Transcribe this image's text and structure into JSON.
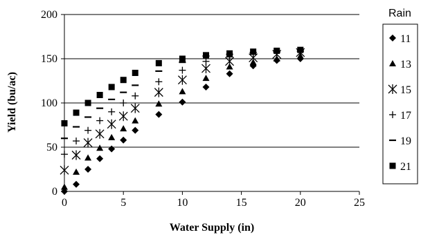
{
  "chart_data": {
    "type": "scatter",
    "title": "",
    "xlabel": "Water Supply (in)",
    "ylabel": "Yield (bu/ac)",
    "xlim": [
      0,
      25
    ],
    "ylim": [
      0,
      200
    ],
    "x_ticks": [
      0,
      5,
      10,
      15,
      20,
      25
    ],
    "y_ticks": [
      0,
      50,
      100,
      150,
      200
    ],
    "grid": "horizontal",
    "legend_title": "Rain",
    "legend_position": "right",
    "series": [
      {
        "name": "11",
        "marker": "diamond",
        "points": [
          [
            0,
            0
          ],
          [
            1,
            8
          ],
          [
            2,
            25
          ],
          [
            3,
            37
          ],
          [
            4,
            48
          ],
          [
            5,
            58
          ],
          [
            6,
            69
          ],
          [
            8,
            87
          ],
          [
            10,
            101
          ],
          [
            12,
            118
          ],
          [
            14,
            133
          ],
          [
            16,
            142
          ],
          [
            18,
            148
          ],
          [
            20,
            150
          ]
        ]
      },
      {
        "name": "13",
        "marker": "triangle",
        "points": [
          [
            0,
            5
          ],
          [
            1,
            22
          ],
          [
            2,
            38
          ],
          [
            3,
            49
          ],
          [
            4,
            61
          ],
          [
            5,
            71
          ],
          [
            6,
            80
          ],
          [
            8,
            99
          ],
          [
            10,
            113
          ],
          [
            12,
            128
          ],
          [
            14,
            141
          ],
          [
            16,
            146
          ],
          [
            18,
            150
          ],
          [
            20,
            153
          ]
        ]
      },
      {
        "name": "15",
        "marker": "asterisk",
        "points": [
          [
            0,
            24
          ],
          [
            1,
            41
          ],
          [
            2,
            55
          ],
          [
            3,
            65
          ],
          [
            4,
            76
          ],
          [
            5,
            85
          ],
          [
            6,
            94
          ],
          [
            8,
            112
          ],
          [
            10,
            126
          ],
          [
            12,
            139
          ],
          [
            14,
            147
          ],
          [
            16,
            151
          ],
          [
            18,
            155
          ],
          [
            20,
            157
          ]
        ]
      },
      {
        "name": "17",
        "marker": "plus",
        "points": [
          [
            0,
            42
          ],
          [
            1,
            57
          ],
          [
            2,
            69
          ],
          [
            3,
            80
          ],
          [
            4,
            90
          ],
          [
            5,
            100
          ],
          [
            6,
            108
          ],
          [
            8,
            124
          ],
          [
            10,
            137
          ],
          [
            12,
            147
          ],
          [
            14,
            152
          ],
          [
            16,
            155
          ],
          [
            18,
            157
          ],
          [
            20,
            158
          ]
        ]
      },
      {
        "name": "19",
        "marker": "dash",
        "points": [
          [
            0,
            60
          ],
          [
            1,
            73
          ],
          [
            2,
            84
          ],
          [
            3,
            94
          ],
          [
            4,
            104
          ],
          [
            5,
            112
          ],
          [
            6,
            120
          ],
          [
            8,
            136
          ],
          [
            10,
            146
          ],
          [
            12,
            153
          ],
          [
            14,
            155
          ],
          [
            16,
            157
          ],
          [
            18,
            158
          ],
          [
            20,
            159
          ]
        ]
      },
      {
        "name": "21",
        "marker": "square",
        "points": [
          [
            0,
            77
          ],
          [
            1,
            89
          ],
          [
            2,
            100
          ],
          [
            3,
            109
          ],
          [
            4,
            118
          ],
          [
            5,
            126
          ],
          [
            6,
            134
          ],
          [
            8,
            145
          ],
          [
            10,
            150
          ],
          [
            12,
            154
          ],
          [
            14,
            156
          ],
          [
            16,
            158
          ],
          [
            18,
            159
          ],
          [
            20,
            160
          ]
        ]
      }
    ]
  }
}
